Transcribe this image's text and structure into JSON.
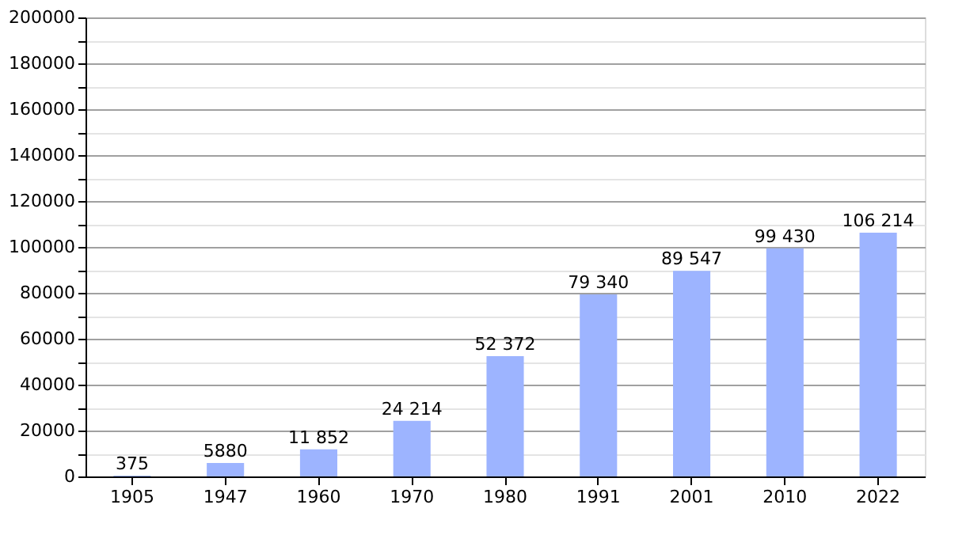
{
  "chart_data": {
    "type": "bar",
    "categories": [
      "1905",
      "1947",
      "1960",
      "1970",
      "1980",
      "1991",
      "2001",
      "2010",
      "2022"
    ],
    "values": [
      375,
      5880,
      11852,
      24214,
      52372,
      79340,
      89547,
      99430,
      106214
    ],
    "value_labels": [
      "375",
      "5880",
      "11 852",
      "24 214",
      "52 372",
      "79 340",
      "89 547",
      "99 430",
      "106 214"
    ],
    "color": "#9db4ff",
    "ylim": [
      0,
      200000
    ],
    "yticks": [
      0,
      {
        "value": 10000,
        "label": null
      },
      20000,
      {
        "value": 30000,
        "label": null
      },
      40000,
      {
        "value": 50000,
        "label": null
      },
      60000,
      {
        "value": 70000,
        "label": null
      },
      80000,
      {
        "value": 90000,
        "label": null
      },
      100000,
      {
        "value": 110000,
        "label": null
      },
      120000,
      {
        "value": 130000,
        "label": null
      },
      140000,
      {
        "value": 150000,
        "label": null
      },
      160000,
      {
        "value": 170000,
        "label": null
      },
      180000,
      {
        "value": 190000,
        "label": null
      },
      200000
    ],
    "grid": "y"
  }
}
